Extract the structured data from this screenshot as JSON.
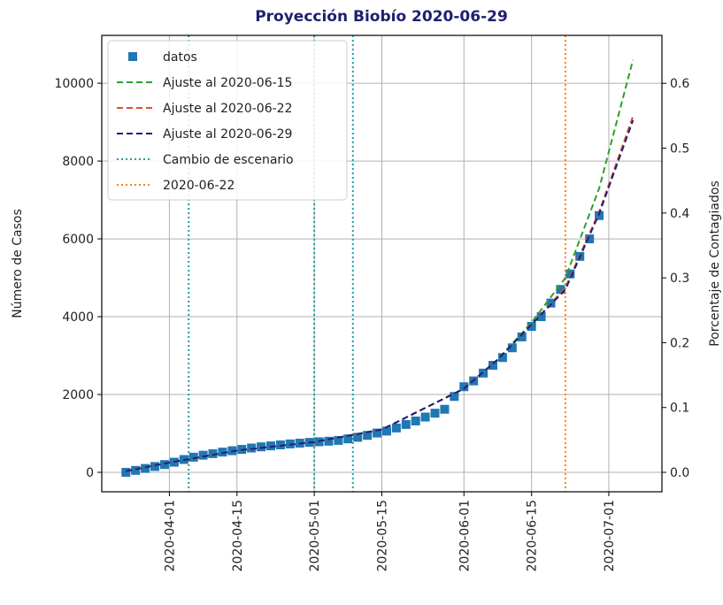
{
  "chart_data": {
    "type": "line",
    "title": "Proyección Biobío 2020-06-29",
    "ylabel": "Número de Casos",
    "y2label": "Porcentaje de Contagiados",
    "xlim": [
      "2020-03-18",
      "2020-07-12"
    ],
    "xticks": [
      "2020-04-01",
      "2020-04-15",
      "2020-05-01",
      "2020-05-15",
      "2020-06-01",
      "2020-06-15",
      "2020-07-01"
    ],
    "ylim": [
      -500,
      11230
    ],
    "yticks": [
      0,
      2000,
      4000,
      6000,
      8000,
      10000
    ],
    "y2lim": [
      -0.03,
      0.674
    ],
    "y2ticks": [
      {
        "value": 0,
        "label": "0.0"
      },
      0.1,
      0.2,
      0.3,
      0.4,
      0.5,
      0.6
    ],
    "grid": true,
    "legend": "upper left",
    "series": [
      {
        "name": "datos",
        "kind": "scatter",
        "color": "#1f77b4",
        "x": [
          "2020-03-23",
          "2020-03-25",
          "2020-03-27",
          "2020-03-29",
          "2020-03-31",
          "2020-04-02",
          "2020-04-04",
          "2020-04-06",
          "2020-04-08",
          "2020-04-10",
          "2020-04-12",
          "2020-04-14",
          "2020-04-16",
          "2020-04-18",
          "2020-04-20",
          "2020-04-22",
          "2020-04-24",
          "2020-04-26",
          "2020-04-28",
          "2020-04-30",
          "2020-05-02",
          "2020-05-04",
          "2020-05-06",
          "2020-05-08",
          "2020-05-10",
          "2020-05-12",
          "2020-05-14",
          "2020-05-16",
          "2020-05-18",
          "2020-05-20",
          "2020-05-22",
          "2020-05-24",
          "2020-05-26",
          "2020-05-28",
          "2020-05-30",
          "2020-06-01",
          "2020-06-03",
          "2020-06-05",
          "2020-06-07",
          "2020-06-09",
          "2020-06-11",
          "2020-06-13",
          "2020-06-15",
          "2020-06-17",
          "2020-06-19",
          "2020-06-21",
          "2020-06-23",
          "2020-06-25",
          "2020-06-27",
          "2020-06-29"
        ],
        "values": [
          0,
          50,
          100,
          150,
          200,
          260,
          330,
          390,
          440,
          480,
          520,
          555,
          590,
          625,
          655,
          680,
          705,
          730,
          750,
          770,
          785,
          800,
          820,
          860,
          900,
          950,
          1010,
          1060,
          1140,
          1230,
          1320,
          1420,
          1520,
          1620,
          1950,
          2200,
          2350,
          2550,
          2750,
          2950,
          3200,
          3480,
          3750,
          4000,
          4350,
          4700,
          5100,
          5550,
          6000,
          6600
        ]
      },
      {
        "name": "Ajuste al 2020-06-15",
        "kind": "dashed",
        "color": "#2ca02c",
        "x": [
          "2020-03-23",
          "2020-04-01",
          "2020-04-15",
          "2020-05-01",
          "2020-05-15",
          "2020-06-01",
          "2020-06-08",
          "2020-06-15",
          "2020-06-22",
          "2020-06-29",
          "2020-07-06"
        ],
        "values": [
          30,
          250,
          560,
          780,
          1100,
          2150,
          2900,
          3850,
          5000,
          7300,
          10600
        ]
      },
      {
        "name": "Ajuste al 2020-06-22",
        "kind": "dashed",
        "color": "#e0502a",
        "x": [
          "2020-03-23",
          "2020-04-01",
          "2020-04-15",
          "2020-05-01",
          "2020-05-15",
          "2020-06-01",
          "2020-06-08",
          "2020-06-15",
          "2020-06-22",
          "2020-06-29",
          "2020-07-06"
        ],
        "values": [
          30,
          250,
          560,
          780,
          1100,
          2150,
          2900,
          3800,
          4750,
          6700,
          9150
        ]
      },
      {
        "name": "Ajuste al 2020-06-29",
        "kind": "dashed",
        "color": "#1f1f7a",
        "x": [
          "2020-03-23",
          "2020-04-01",
          "2020-04-15",
          "2020-05-01",
          "2020-05-15",
          "2020-06-01",
          "2020-06-08",
          "2020-06-15",
          "2020-06-22",
          "2020-06-29",
          "2020-07-06"
        ],
        "values": [
          30,
          250,
          560,
          780,
          1100,
          2150,
          2900,
          3800,
          4700,
          6650,
          9050
        ]
      }
    ],
    "vlines": [
      {
        "name": "Cambio de escenario",
        "color": "#1f9ea0",
        "x": [
          "2020-04-05",
          "2020-05-01",
          "2020-05-09"
        ]
      },
      {
        "name": "2020-06-22",
        "color": "#ff7f0e",
        "x": [
          "2020-06-22"
        ]
      }
    ]
  }
}
